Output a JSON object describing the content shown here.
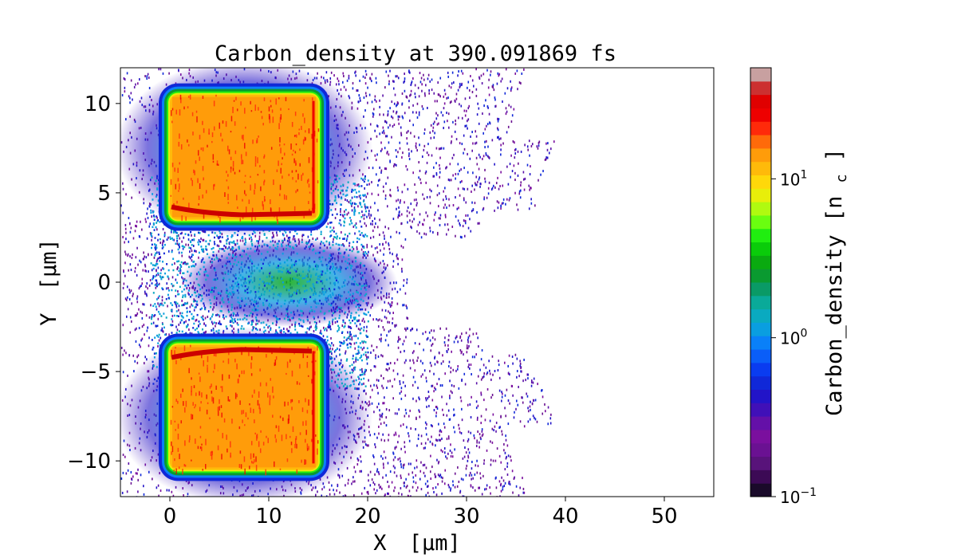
{
  "chart_data": {
    "type": "heatmap",
    "title": "Carbon_density at 390.091869 fs",
    "xlabel_text": "X",
    "xlabel_unit": "[μm]",
    "ylabel_text": "Y",
    "ylabel_unit": "[μm]",
    "xlim": [
      -5,
      55
    ],
    "ylim": [
      -12,
      12
    ],
    "xticks": [
      0,
      10,
      20,
      30,
      40,
      50
    ],
    "yticks": [
      -10,
      -5,
      0,
      5,
      10
    ],
    "ytick_labels": [
      "−10",
      "−5",
      "0",
      "5",
      "10"
    ],
    "colorbar": {
      "label_text": "Carbon_density",
      "label_unit": "[n",
      "label_unit_sub": "c",
      "label_unit_end": "]",
      "scale": "log",
      "range": [
        0.1,
        50
      ],
      "ticks": [
        {
          "value": 0.1,
          "base": "10",
          "exp": "−1"
        },
        {
          "value": 1,
          "base": "10",
          "exp": "0"
        },
        {
          "value": 10,
          "base": "10",
          "exp": "1"
        }
      ],
      "colors": [
        "#1a0a2a",
        "#3c0a55",
        "#58137a",
        "#6a1192",
        "#7a0f9e",
        "#6410a8",
        "#4010b8",
        "#2214c8",
        "#1028d8",
        "#0a3cf0",
        "#0a5ef8",
        "#0a80f8",
        "#0a9ee0",
        "#0aaac0",
        "#0aaa99",
        "#0a9a66",
        "#0a9a30",
        "#0aaa10",
        "#0acc0a",
        "#20ee10",
        "#6afe10",
        "#b0fa10",
        "#e8ee0a",
        "#ffd80a",
        "#ffba0a",
        "#ff9c0a",
        "#ff6a0a",
        "#ff2a0a",
        "#ee0000",
        "#e00000",
        "#cc3030",
        "#c8a0a0"
      ]
    },
    "description_regions": [
      {
        "shape": "rect",
        "x": [
          0,
          15
        ],
        "y": [
          3.5,
          10.5
        ],
        "value": 20
      },
      {
        "shape": "rect",
        "x": [
          0,
          15
        ],
        "y": [
          -10.5,
          -3.5
        ],
        "value": 20
      }
    ]
  }
}
